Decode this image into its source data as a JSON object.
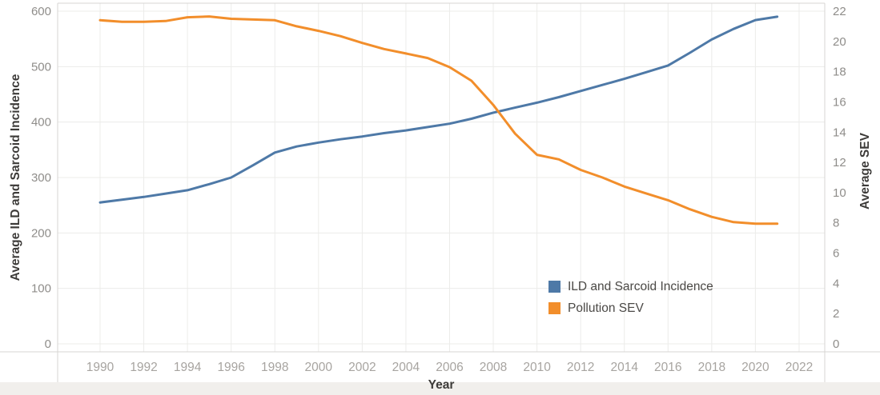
{
  "chart_data": {
    "type": "line",
    "title": "",
    "x": [
      1990,
      1991,
      1992,
      1993,
      1994,
      1995,
      1996,
      1997,
      1998,
      1999,
      2000,
      2001,
      2002,
      2003,
      2004,
      2005,
      2006,
      2007,
      2008,
      2009,
      2010,
      2011,
      2012,
      2013,
      2014,
      2015,
      2016,
      2017,
      2018,
      2019,
      2020,
      2021
    ],
    "series": [
      {
        "name": "ILD and Sarcoid Incidence",
        "axis": "left",
        "color": "#4e79a7",
        "values": [
          255,
          260,
          265,
          271,
          277,
          288,
          300,
          322,
          345,
          356,
          363,
          369,
          374,
          380,
          385,
          391,
          397,
          406,
          417,
          426,
          435,
          445,
          456,
          467,
          478,
          490,
          502,
          525,
          549,
          568,
          584,
          590
        ]
      },
      {
        "name": "Pollution SEV",
        "axis": "right",
        "color": "#f28e2b",
        "values": [
          21.4,
          21.3,
          21.3,
          21.35,
          21.6,
          21.65,
          21.5,
          21.45,
          21.4,
          21.0,
          20.7,
          20.35,
          19.9,
          19.5,
          19.2,
          18.9,
          18.3,
          17.4,
          15.8,
          13.9,
          12.5,
          12.2,
          11.5,
          11.0,
          10.4,
          9.95,
          9.5,
          8.9,
          8.4,
          8.05,
          7.95,
          7.95
        ]
      }
    ],
    "x_axis": {
      "label": "Year",
      "ticks": [
        1990,
        1992,
        1994,
        1996,
        1998,
        2000,
        2002,
        2004,
        2006,
        2008,
        2010,
        2012,
        2014,
        2016,
        2018,
        2020,
        2022
      ]
    },
    "left_axis": {
      "label": "Average ILD and Sarcoid Incidence",
      "ticks": [
        0,
        100,
        200,
        300,
        400,
        500,
        600
      ],
      "range": [
        0,
        600
      ]
    },
    "right_axis": {
      "label": "Average SEV",
      "ticks": [
        0,
        2,
        4,
        6,
        8,
        10,
        12,
        14,
        16,
        18,
        20,
        22
      ],
      "range": [
        0,
        22
      ]
    },
    "legend": {
      "position": "bottom-right"
    },
    "grid": true
  },
  "colors": {
    "grid": "#ececea",
    "border": "#d7d5d3",
    "series_blue": "#4e79a7",
    "series_orange": "#f28e2b"
  }
}
